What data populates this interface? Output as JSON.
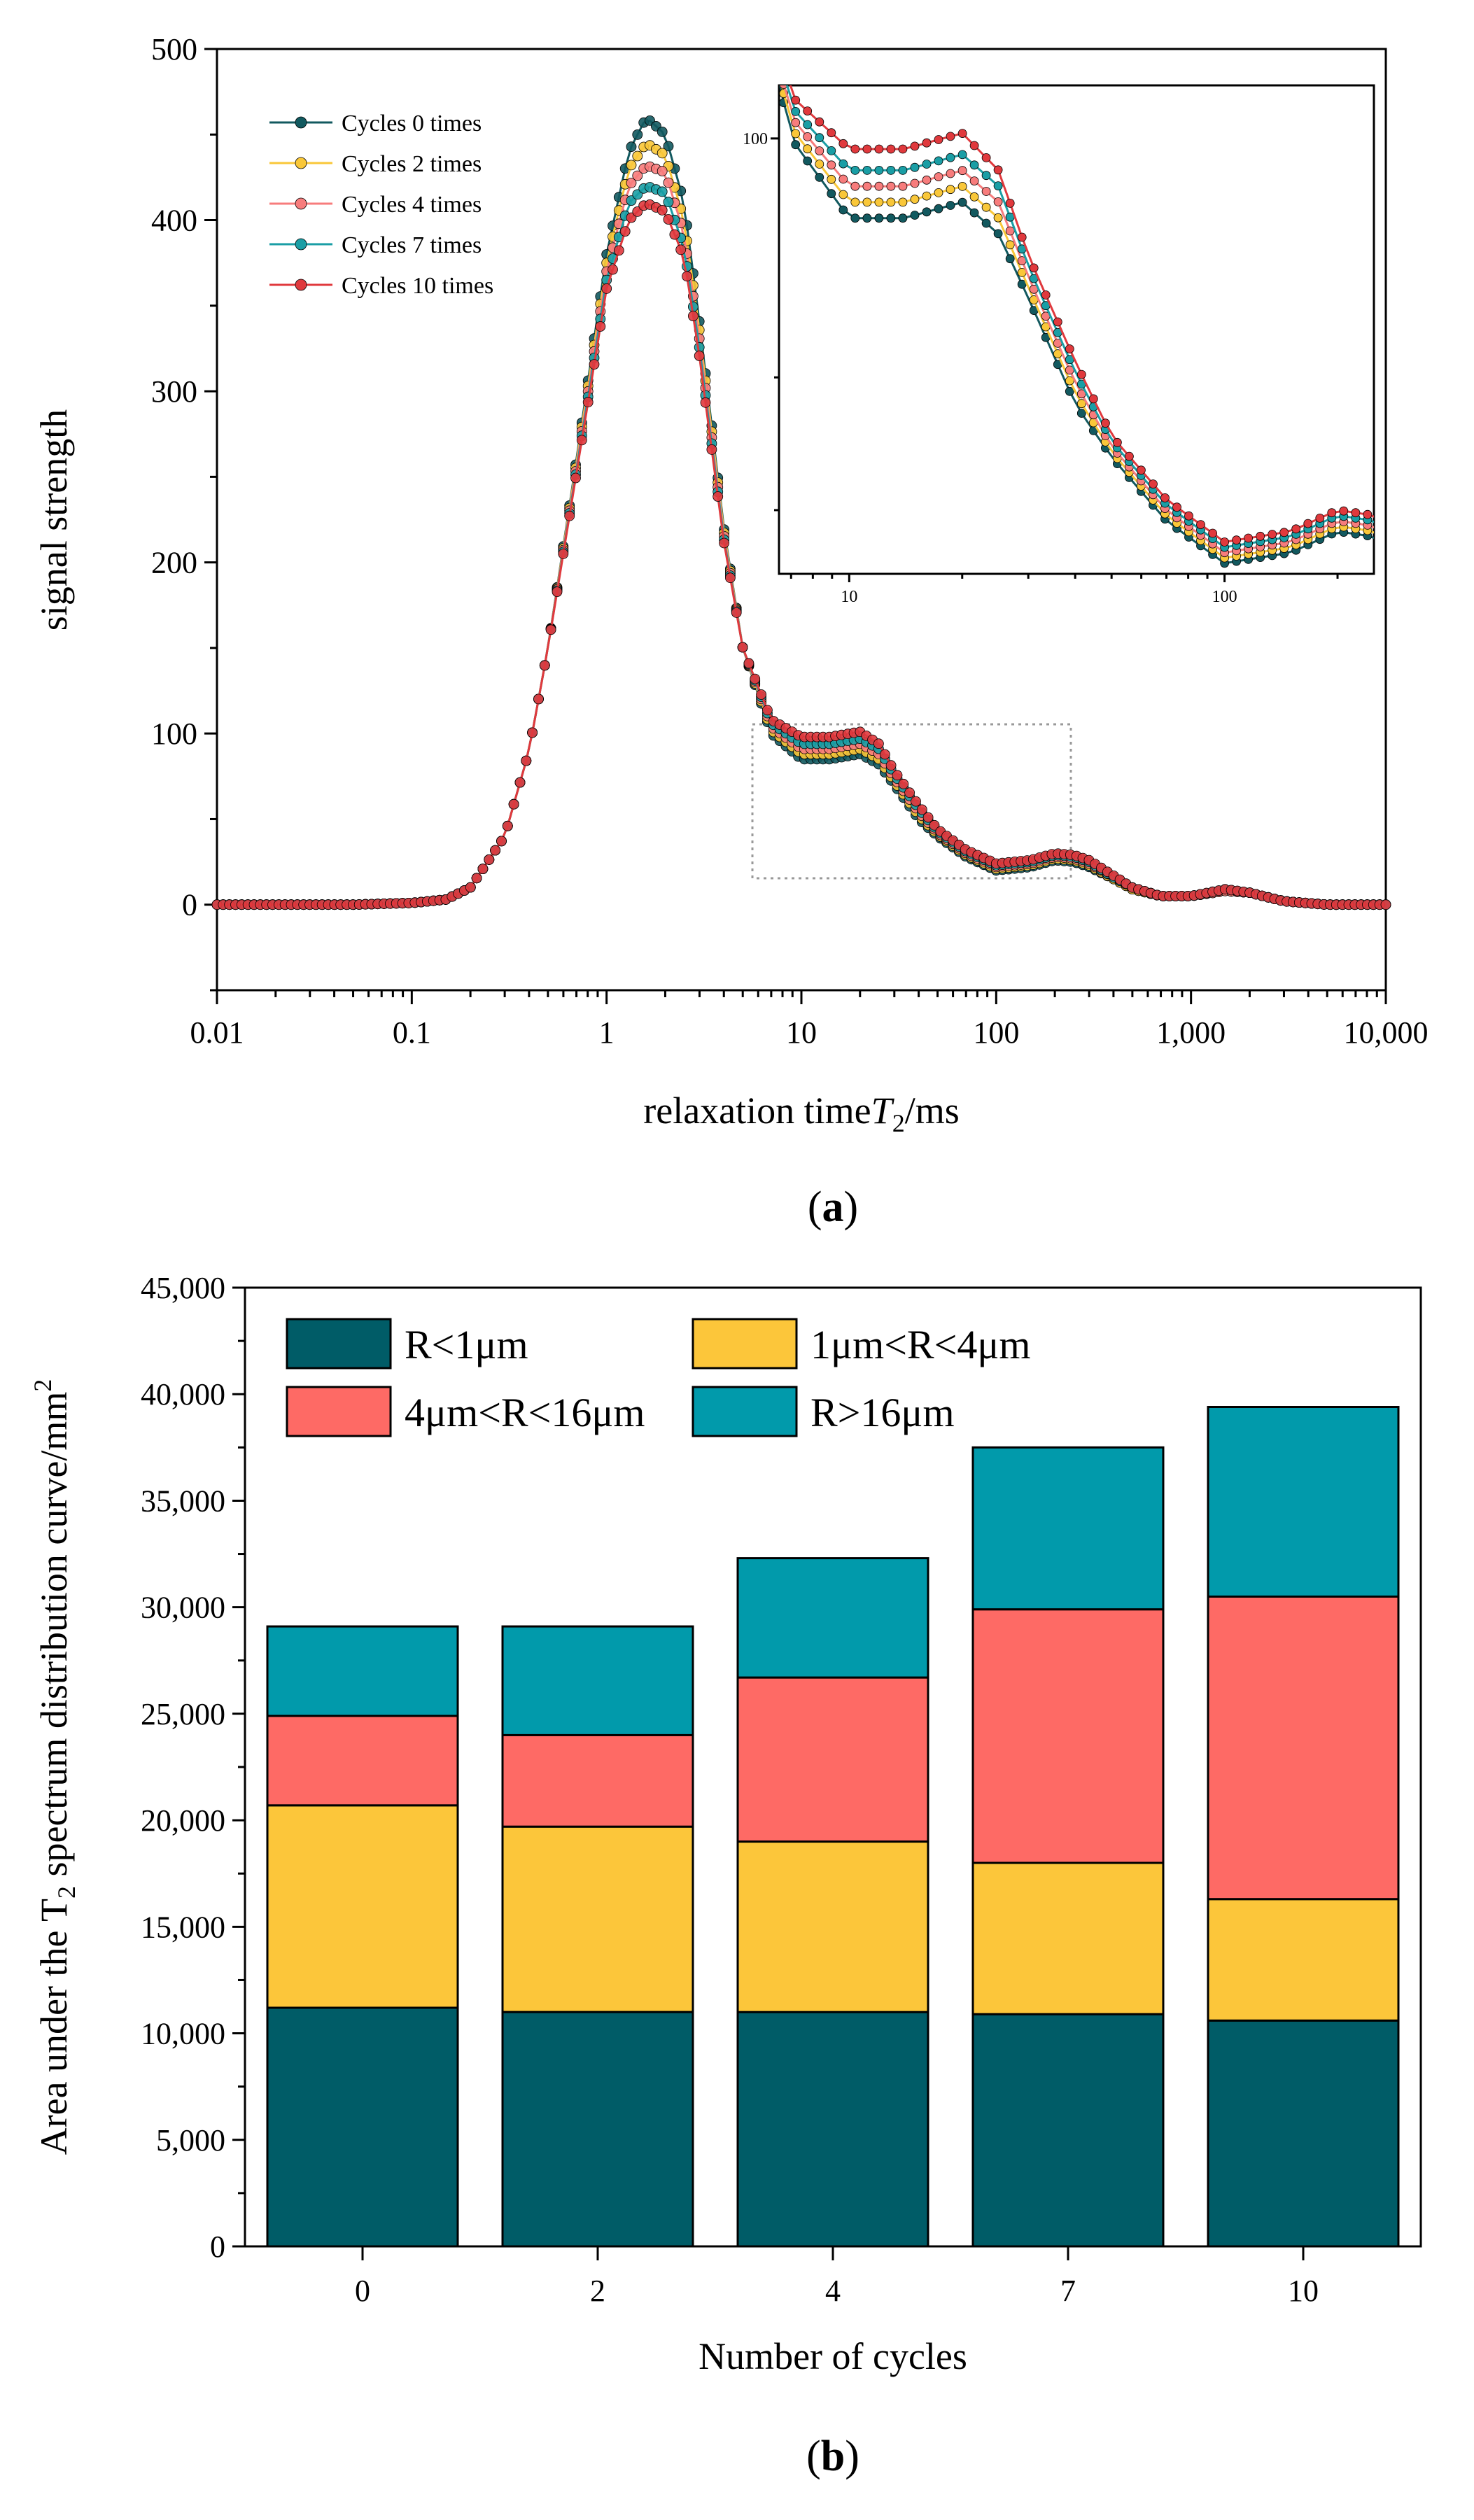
{
  "chart_data": [
    {
      "type": "line",
      "panel_label": "a",
      "xlabel": "relaxation time",
      "xlabel_symbol": "T",
      "xlabel_sub": "2",
      "xlabel_unit": "/ms",
      "ylabel": "signal strength",
      "xscale": "log",
      "xlim": [
        0.01,
        10000
      ],
      "ylim": [
        -50,
        500
      ],
      "xticks": [
        0.01,
        0.1,
        1,
        10,
        100,
        1000,
        10000
      ],
      "xtick_labels": [
        "0.01",
        "0.1",
        "1",
        "10",
        "100",
        "1,000",
        "10,000"
      ],
      "yticks": [
        0,
        100,
        200,
        300,
        400,
        500
      ],
      "ytick_labels": [
        "0",
        "100",
        "200",
        "300",
        "400",
        "500"
      ],
      "legend_position": "upper-left",
      "x": [
        0.01,
        0.02,
        0.05,
        0.1,
        0.15,
        0.2,
        0.3,
        0.4,
        0.5,
        0.7,
        1.0,
        1.3,
        1.6,
        2.0,
        2.5,
        3.0,
        4.0,
        5.0,
        7.0,
        10,
        14,
        20,
        25,
        30,
        40,
        50,
        70,
        100,
        150,
        200,
        250,
        300,
        400,
        500,
        700,
        1000,
        1500,
        2000,
        3000,
        5000,
        10000
      ],
      "series": [
        {
          "name": "Cycles 0 times",
          "color": "#12595f",
          "values": [
            0,
            0,
            0,
            1,
            3,
            10,
            40,
            90,
            150,
            260,
            380,
            440,
            460,
            450,
            410,
            340,
            220,
            150,
            100,
            85,
            85,
            88,
            82,
            70,
            50,
            40,
            28,
            20,
            22,
            26,
            25,
            22,
            15,
            9,
            5,
            5,
            8,
            7,
            2,
            0,
            0
          ]
        },
        {
          "name": "Cycles 2 times",
          "color": "#f9c739",
          "values": [
            0,
            0,
            0,
            1,
            3,
            10,
            40,
            90,
            150,
            258,
            375,
            430,
            445,
            438,
            400,
            335,
            218,
            150,
            102,
            88,
            88,
            91,
            85,
            72,
            52,
            41,
            29,
            21,
            23,
            27,
            26,
            23,
            15,
            9,
            5,
            5,
            8,
            7,
            2,
            0,
            0
          ]
        },
        {
          "name": "Cycles 4 times",
          "color": "#f77c7c",
          "values": [
            0,
            0,
            0,
            1,
            3,
            10,
            40,
            90,
            150,
            256,
            370,
            420,
            432,
            428,
            392,
            330,
            216,
            150,
            104,
            91,
            91,
            94,
            88,
            74,
            54,
            42,
            30,
            22,
            24,
            28,
            27,
            24,
            16,
            10,
            5,
            5,
            8,
            7,
            2,
            0,
            0
          ]
        },
        {
          "name": "Cycles 7 times",
          "color": "#1a9ea5",
          "values": [
            0,
            0,
            0,
            1,
            3,
            10,
            40,
            90,
            150,
            254,
            365,
            410,
            420,
            416,
            384,
            325,
            214,
            150,
            106,
            94,
            94,
            97,
            91,
            76,
            56,
            43,
            31,
            23,
            25,
            29,
            28,
            25,
            16,
            10,
            5,
            5,
            9,
            7,
            2,
            0,
            0
          ]
        },
        {
          "name": "Cycles 10 times",
          "color": "#e0393d",
          "values": [
            0,
            0,
            0,
            1,
            3,
            10,
            40,
            90,
            150,
            252,
            360,
            400,
            410,
            405,
            378,
            320,
            212,
            150,
            108,
            98,
            98,
            101,
            94,
            78,
            58,
            44,
            32,
            24,
            26,
            30,
            29,
            26,
            17,
            10,
            5,
            5,
            9,
            7,
            2,
            0,
            0
          ]
        }
      ],
      "inset": {
        "xscale": "log",
        "xlim": [
          6.5,
          250
        ],
        "ylim": [
          18,
          110
        ],
        "xtick_labels": [
          "10",
          "100"
        ],
        "ytick_label": "100",
        "note": "zoom of 6.5–250 ms region"
      }
    },
    {
      "type": "bar",
      "stacked": true,
      "panel_label": "b",
      "xlabel": "Number of cycles",
      "ylabel_prefix": "Area under the T",
      "ylabel_sub": "2",
      "ylabel_mid": " spectrum distribution curve/mm",
      "ylabel_sup": "2",
      "categories": [
        "0",
        "2",
        "4",
        "7",
        "10"
      ],
      "ylim": [
        0,
        45000
      ],
      "yticks": [
        0,
        5000,
        10000,
        15000,
        20000,
        25000,
        30000,
        35000,
        40000,
        45000
      ],
      "ytick_labels": [
        "0",
        "5,000",
        "10,000",
        "15,000",
        "20,000",
        "25,000",
        "30,000",
        "35,000",
        "40,000",
        "45,000"
      ],
      "legend_position": "top",
      "series": [
        {
          "name": "R<1μm",
          "color": "#005c67",
          "values": [
            11200,
            11000,
            11000,
            10900,
            10600
          ]
        },
        {
          "name": "1μm<R<4μm",
          "color": "#fcc63a",
          "values": [
            9500,
            8700,
            8000,
            7100,
            5700
          ]
        },
        {
          "name": "4μm<R<16μm",
          "color": "#fe6a65",
          "values": [
            4200,
            4300,
            7700,
            11900,
            14200
          ]
        },
        {
          "name": "R>16μm",
          "color": "#019aab",
          "values": [
            4200,
            5100,
            5600,
            7600,
            8900
          ]
        }
      ]
    }
  ]
}
